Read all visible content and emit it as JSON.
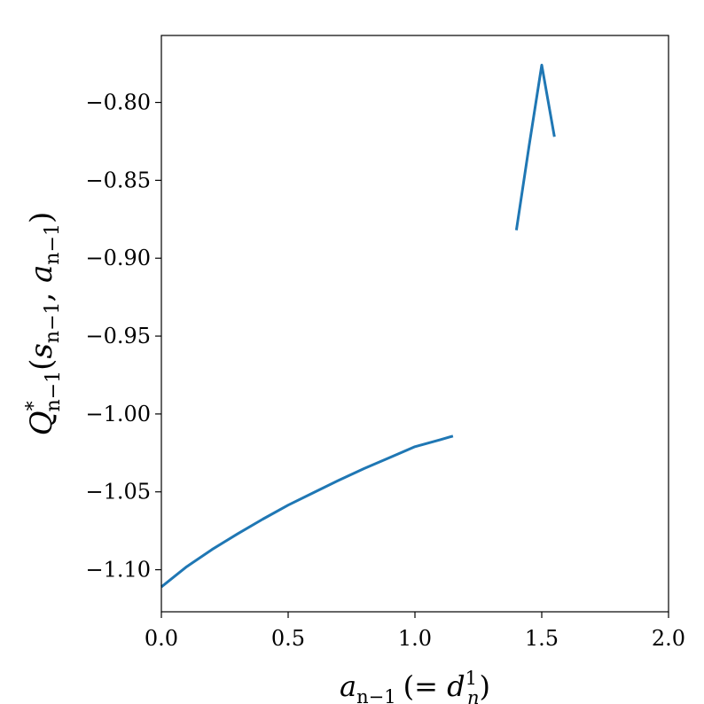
{
  "chart_data": {
    "type": "line",
    "title": "",
    "xlabel": {
      "main": "a",
      "sub": "n−1",
      "open": "(= ",
      "d": "d",
      "d_sup": "1",
      "d_sub": "n",
      "close": ")"
    },
    "ylabel": {
      "main": "Q",
      "sup": "*",
      "sub": "n−1",
      "open": "(",
      "s": "s",
      "s_sub": "n−1",
      "comma": ", ",
      "a": "a",
      "a_sub": "n−1",
      "close": ")"
    },
    "xlim": [
      0.0,
      2.0
    ],
    "ylim": [
      -1.127,
      -0.757
    ],
    "xticks": [
      0.0,
      0.5,
      1.0,
      1.5,
      2.0
    ],
    "xtick_labels": [
      "0.0",
      "0.5",
      "1.0",
      "1.5",
      "2.0"
    ],
    "yticks": [
      -1.1,
      -1.05,
      -1.0,
      -0.95,
      -0.9,
      -0.85,
      -0.8
    ],
    "ytick_labels": [
      "−1.10",
      "−1.05",
      "−1.00",
      "−0.95",
      "−0.90",
      "−0.85",
      "−0.80"
    ],
    "grid": false,
    "color": "#1f77b4",
    "segments": [
      {
        "x": [
          0.0,
          0.1,
          0.2,
          0.3,
          0.4,
          0.5,
          0.6,
          0.7,
          0.8,
          0.9,
          1.0,
          1.1,
          1.15
        ],
        "y": [
          -1.111,
          -1.098,
          -1.087,
          -1.077,
          -1.0675,
          -1.0585,
          -1.0505,
          -1.0425,
          -1.035,
          -1.028,
          -1.021,
          -1.0165,
          -1.0142
        ]
      },
      {
        "x": [
          1.4,
          1.45,
          1.5,
          1.55
        ],
        "y": [
          -0.882,
          -0.828,
          -0.776,
          -0.822
        ]
      }
    ]
  }
}
